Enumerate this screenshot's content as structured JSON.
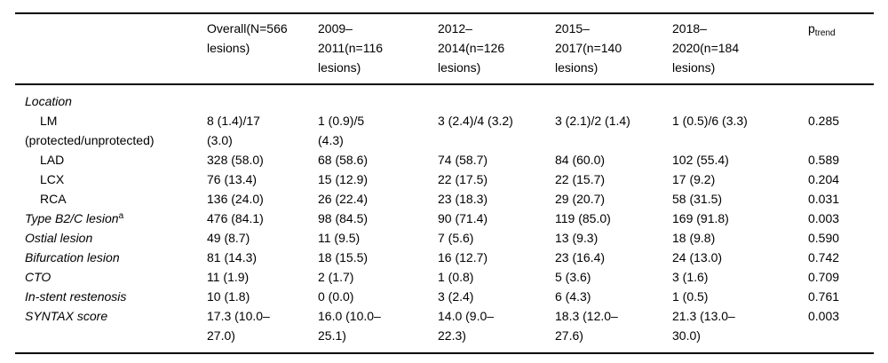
{
  "colors": {
    "background": "#ffffff",
    "text": "#000000",
    "rule": "#000000"
  },
  "table": {
    "header": {
      "cols": [
        {
          "label": ""
        },
        {
          "label": "Overall(N=566\nlesions)"
        },
        {
          "label": "2009–\n2011(n=116\nlesions)"
        },
        {
          "label": "2012–\n2014(n=126\nlesions)"
        },
        {
          "label": "2015–\n2017(n=140\nlesions)"
        },
        {
          "label": "2018–\n2020(n=184\nlesions)"
        },
        {
          "base": "p",
          "sub": "trend"
        }
      ]
    },
    "rows": [
      {
        "label": "Location",
        "cells": [
          "",
          "",
          "",
          "",
          "",
          ""
        ]
      },
      {
        "label": "LM\n(protected/unprotected)",
        "cells": [
          "8 (1.4)/17\n(3.0)",
          "1 (0.9)/5\n(4.3)",
          "3 (2.4)/4 (3.2)",
          "3 (2.1)/2 (1.4)",
          "1 (0.5)/6 (3.3)",
          "0.285"
        ]
      },
      {
        "label": "LAD",
        "cells": [
          "328 (58.0)",
          "68 (58.6)",
          "74 (58.7)",
          "84 (60.0)",
          "102 (55.4)",
          "0.589"
        ]
      },
      {
        "label": "LCX",
        "cells": [
          "76 (13.4)",
          "15 (12.9)",
          "22 (17.5)",
          "22 (15.7)",
          "17 (9.2)",
          "0.204"
        ]
      },
      {
        "label": "RCA",
        "cells": [
          "136 (24.0)",
          "26 (22.4)",
          "23 (18.3)",
          "29 (20.7)",
          "58 (31.5)",
          "0.031"
        ]
      },
      {
        "label": "Type B2/C lesion",
        "sup": "a",
        "cells": [
          "476 (84.1)",
          "98 (84.5)",
          "90 (71.4)",
          "119 (85.0)",
          "169 (91.8)",
          "0.003"
        ]
      },
      {
        "label": "Ostial lesion",
        "cells": [
          "49 (8.7)",
          "11 (9.5)",
          "7 (5.6)",
          "13 (9.3)",
          "18 (9.8)",
          "0.590"
        ]
      },
      {
        "label": "Bifurcation lesion",
        "cells": [
          "81 (14.3)",
          "18 (15.5)",
          "16 (12.7)",
          "23 (16.4)",
          "24 (13.0)",
          "0.742"
        ]
      },
      {
        "label": "CTO",
        "cells": [
          "11 (1.9)",
          "2 (1.7)",
          "1 (0.8)",
          "5 (3.6)",
          "3 (1.6)",
          "0.709"
        ]
      },
      {
        "label": "In-stent restenosis",
        "cells": [
          "10 (1.8)",
          "0 (0.0)",
          "3 (2.4)",
          "6 (4.3)",
          "1 (0.5)",
          "0.761"
        ]
      },
      {
        "label": "SYNTAX score",
        "cells": [
          "17.3 (10.0–\n27.0)",
          "16.0 (10.0–\n25.1)",
          "14.0 (9.0–\n22.3)",
          "18.3 (12.0–\n27.6)",
          "21.3 (13.0–\n30.0)",
          "0.003"
        ]
      }
    ]
  }
}
